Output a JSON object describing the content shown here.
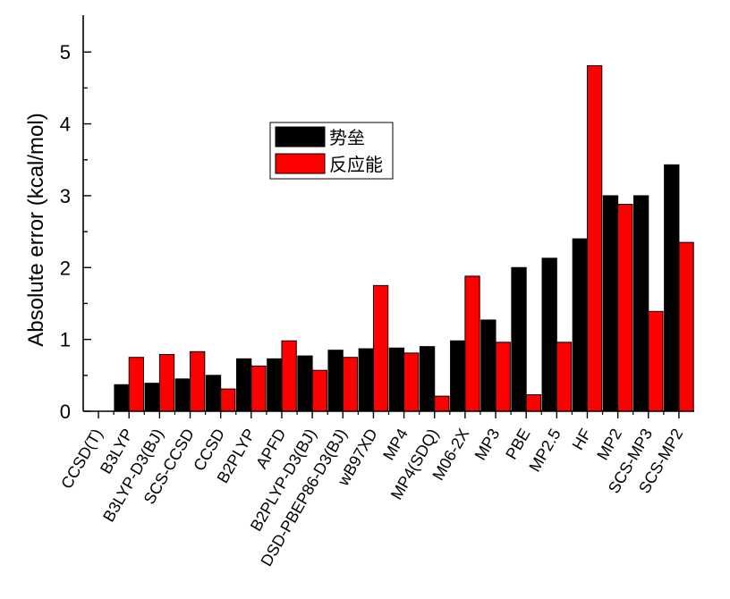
{
  "chart_data": {
    "type": "bar",
    "categories": [
      "CCSD(T)",
      "B3LYP",
      "B3LYP-D3(BJ)",
      "SCS-CCSD",
      "CCSD",
      "B2PLYP",
      "APFD",
      "B2PLYP-D3(BJ)",
      "DSD-PBEP86-D3(BJ)",
      "wB97XD",
      "MP4",
      "MP4(SDQ)",
      "M06-2X",
      "MP3",
      "PBE",
      "MP2.5",
      "HF",
      "MP2",
      "SCS-MP3",
      "SCS-MP2"
    ],
    "series": [
      {
        "name": "势垒",
        "color": "#000000",
        "values": [
          0.0,
          0.37,
          0.39,
          0.45,
          0.5,
          0.73,
          0.73,
          0.77,
          0.85,
          0.87,
          0.88,
          0.9,
          0.98,
          1.27,
          2.0,
          2.13,
          2.4,
          3.0,
          3.0,
          3.43
        ]
      },
      {
        "name": "反应能",
        "color": "#ff0000",
        "values": [
          0.0,
          0.75,
          0.79,
          0.83,
          0.31,
          0.63,
          0.98,
          0.57,
          0.75,
          1.75,
          0.81,
          0.21,
          1.88,
          0.96,
          0.23,
          0.96,
          4.81,
          2.88,
          1.39,
          2.35
        ]
      }
    ],
    "xlabel": "",
    "ylabel": "Absolute error (kcal/mol)",
    "ylim": [
      0,
      5.5
    ],
    "yticks": [
      "0",
      "1",
      "2",
      "3",
      "4",
      "5"
    ],
    "legend_position": "center-left",
    "grid": false
  }
}
